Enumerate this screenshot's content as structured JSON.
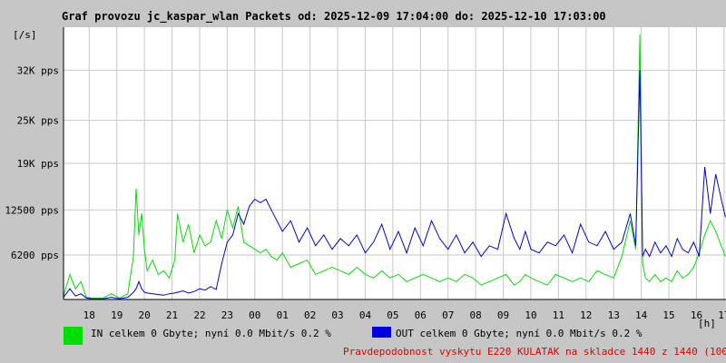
{
  "chart_data": {
    "type": "line",
    "title": "Graf provozu jc_kaspar_wlan Packets od: 2025-12-09 17:04:00 do: 2025-12-10 17:03:00",
    "ylabel": "[/s]",
    "xlabel": "[h]",
    "ylim": [
      0,
      38000
    ],
    "grid": true,
    "y_ticks": [
      {
        "value": 6200,
        "label": "6200 pps"
      },
      {
        "value": 12500,
        "label": "12500 pps"
      },
      {
        "value": 19000,
        "label": "19K pps"
      },
      {
        "value": 25000,
        "label": "25K pps"
      },
      {
        "value": 32000,
        "label": "32K pps"
      }
    ],
    "x_tick_labels": [
      "18",
      "19",
      "20",
      "21",
      "22",
      "23",
      "00",
      "01",
      "02",
      "03",
      "04",
      "05",
      "06",
      "07",
      "08",
      "09",
      "10",
      "11",
      "12",
      "13",
      "14",
      "15",
      "16",
      "17"
    ],
    "series": [
      {
        "name": "IN",
        "color": "#00e000",
        "x": [
          17.07,
          17.3,
          17.5,
          17.7,
          17.9,
          18.1,
          18.5,
          18.8,
          19.1,
          19.4,
          19.6,
          19.7,
          19.8,
          19.9,
          20.0,
          20.1,
          20.3,
          20.5,
          20.7,
          20.9,
          21.1,
          21.2,
          21.4,
          21.6,
          21.8,
          22.0,
          22.2,
          22.4,
          22.6,
          22.8,
          23.0,
          23.2,
          23.4,
          23.6,
          23.8,
          24.0,
          24.2,
          24.4,
          24.6,
          24.8,
          25.0,
          25.3,
          25.6,
          25.9,
          26.2,
          26.5,
          26.8,
          27.1,
          27.4,
          27.7,
          28.0,
          28.3,
          28.6,
          28.9,
          29.2,
          29.5,
          29.8,
          30.1,
          30.4,
          30.7,
          31.0,
          31.3,
          31.6,
          31.9,
          32.2,
          32.5,
          32.8,
          33.1,
          33.4,
          33.6,
          33.8,
          34.0,
          34.3,
          34.6,
          34.9,
          35.2,
          35.5,
          35.8,
          36.1,
          36.4,
          36.7,
          37.0,
          37.3,
          37.6,
          37.8,
          37.95,
          38.05,
          38.15,
          38.3,
          38.5,
          38.7,
          38.9,
          39.1,
          39.3,
          39.5,
          39.7,
          39.9,
          40.1,
          40.3,
          40.5,
          40.7,
          40.9,
          41.05
        ],
        "values": [
          500,
          3500,
          1500,
          2500,
          300,
          200,
          200,
          800,
          200,
          800,
          6000,
          15500,
          9000,
          12000,
          7000,
          4000,
          5500,
          3500,
          4000,
          3000,
          5500,
          12000,
          8000,
          10500,
          6500,
          9000,
          7500,
          8000,
          11000,
          8500,
          12500,
          10000,
          13000,
          8000,
          7500,
          7000,
          6500,
          7000,
          6000,
          5500,
          6500,
          4500,
          5000,
          5500,
          3500,
          4000,
          4500,
          4000,
          3500,
          4500,
          3500,
          3000,
          4000,
          3000,
          3500,
          2500,
          3000,
          3500,
          3000,
          2500,
          3000,
          2500,
          3500,
          3000,
          2000,
          2500,
          3000,
          3500,
          2000,
          2500,
          3500,
          3000,
          2500,
          2000,
          3500,
          3000,
          2500,
          3000,
          2500,
          4000,
          3500,
          3000,
          6000,
          11000,
          7000,
          37000,
          5000,
          3000,
          2500,
          3500,
          2500,
          3000,
          2500,
          4000,
          3000,
          3500,
          4500,
          6500,
          9000,
          11000,
          9500,
          7500,
          6000
        ]
      },
      {
        "name": "OUT",
        "color": "#0000e0",
        "x": [
          17.07,
          17.3,
          17.5,
          17.7,
          17.9,
          18.1,
          18.5,
          18.8,
          19.1,
          19.4,
          19.6,
          19.7,
          19.8,
          19.9,
          20.0,
          20.1,
          20.3,
          20.5,
          20.7,
          20.9,
          21.1,
          21.2,
          21.4,
          21.6,
          21.8,
          22.0,
          22.2,
          22.4,
          22.6,
          22.8,
          23.0,
          23.2,
          23.4,
          23.6,
          23.8,
          24.0,
          24.2,
          24.4,
          24.6,
          24.8,
          25.0,
          25.3,
          25.6,
          25.9,
          26.2,
          26.5,
          26.8,
          27.1,
          27.4,
          27.7,
          28.0,
          28.3,
          28.6,
          28.9,
          29.2,
          29.5,
          29.8,
          30.1,
          30.4,
          30.7,
          31.0,
          31.3,
          31.6,
          31.9,
          32.2,
          32.5,
          32.8,
          33.1,
          33.4,
          33.6,
          33.8,
          34.0,
          34.3,
          34.6,
          34.9,
          35.2,
          35.5,
          35.8,
          36.1,
          36.4,
          36.7,
          37.0,
          37.3,
          37.6,
          37.8,
          37.95,
          38.05,
          38.15,
          38.3,
          38.5,
          38.7,
          38.9,
          39.1,
          39.3,
          39.5,
          39.7,
          39.9,
          40.1,
          40.3,
          40.5,
          40.7,
          40.9,
          41.05
        ],
        "values": [
          300,
          1500,
          500,
          800,
          200,
          100,
          100,
          300,
          100,
          300,
          1000,
          1500,
          2500,
          1500,
          1000,
          900,
          800,
          700,
          600,
          800,
          900,
          1000,
          1200,
          900,
          1100,
          1500,
          1300,
          1800,
          1400,
          5000,
          8000,
          9000,
          12000,
          10500,
          13000,
          14000,
          13500,
          14000,
          12500,
          11000,
          9500,
          11000,
          8000,
          10000,
          7500,
          9000,
          7000,
          8500,
          7500,
          9000,
          6500,
          8000,
          10500,
          7000,
          9500,
          6500,
          10000,
          7500,
          11000,
          8500,
          7000,
          9000,
          6500,
          8000,
          6000,
          7500,
          7000,
          12000,
          8500,
          7000,
          9500,
          7000,
          6500,
          8000,
          7500,
          9000,
          6500,
          10500,
          8000,
          7500,
          9500,
          7000,
          8000,
          12000,
          7500,
          32000,
          6000,
          7000,
          6000,
          8000,
          6500,
          7500,
          6000,
          8500,
          7000,
          6500,
          8000,
          6000,
          18500,
          12000,
          17500,
          14000,
          11500
        ]
      }
    ],
    "legend": [
      {
        "name": "IN",
        "color": "#00e000",
        "text": "IN celkem 0 Gbyte; nyní   0.0 Mbit/s 0.2 %"
      },
      {
        "name": "OUT",
        "color": "#0000e0",
        "text": "OUT celkem 0 Gbyte; nyní   0.0 Mbit/s 0.2 %"
      }
    ],
    "probability_text": "Pravdepodobnost vyskytu E220 KULATAK na skladce 1440 z 1440 (100.0 %)"
  }
}
